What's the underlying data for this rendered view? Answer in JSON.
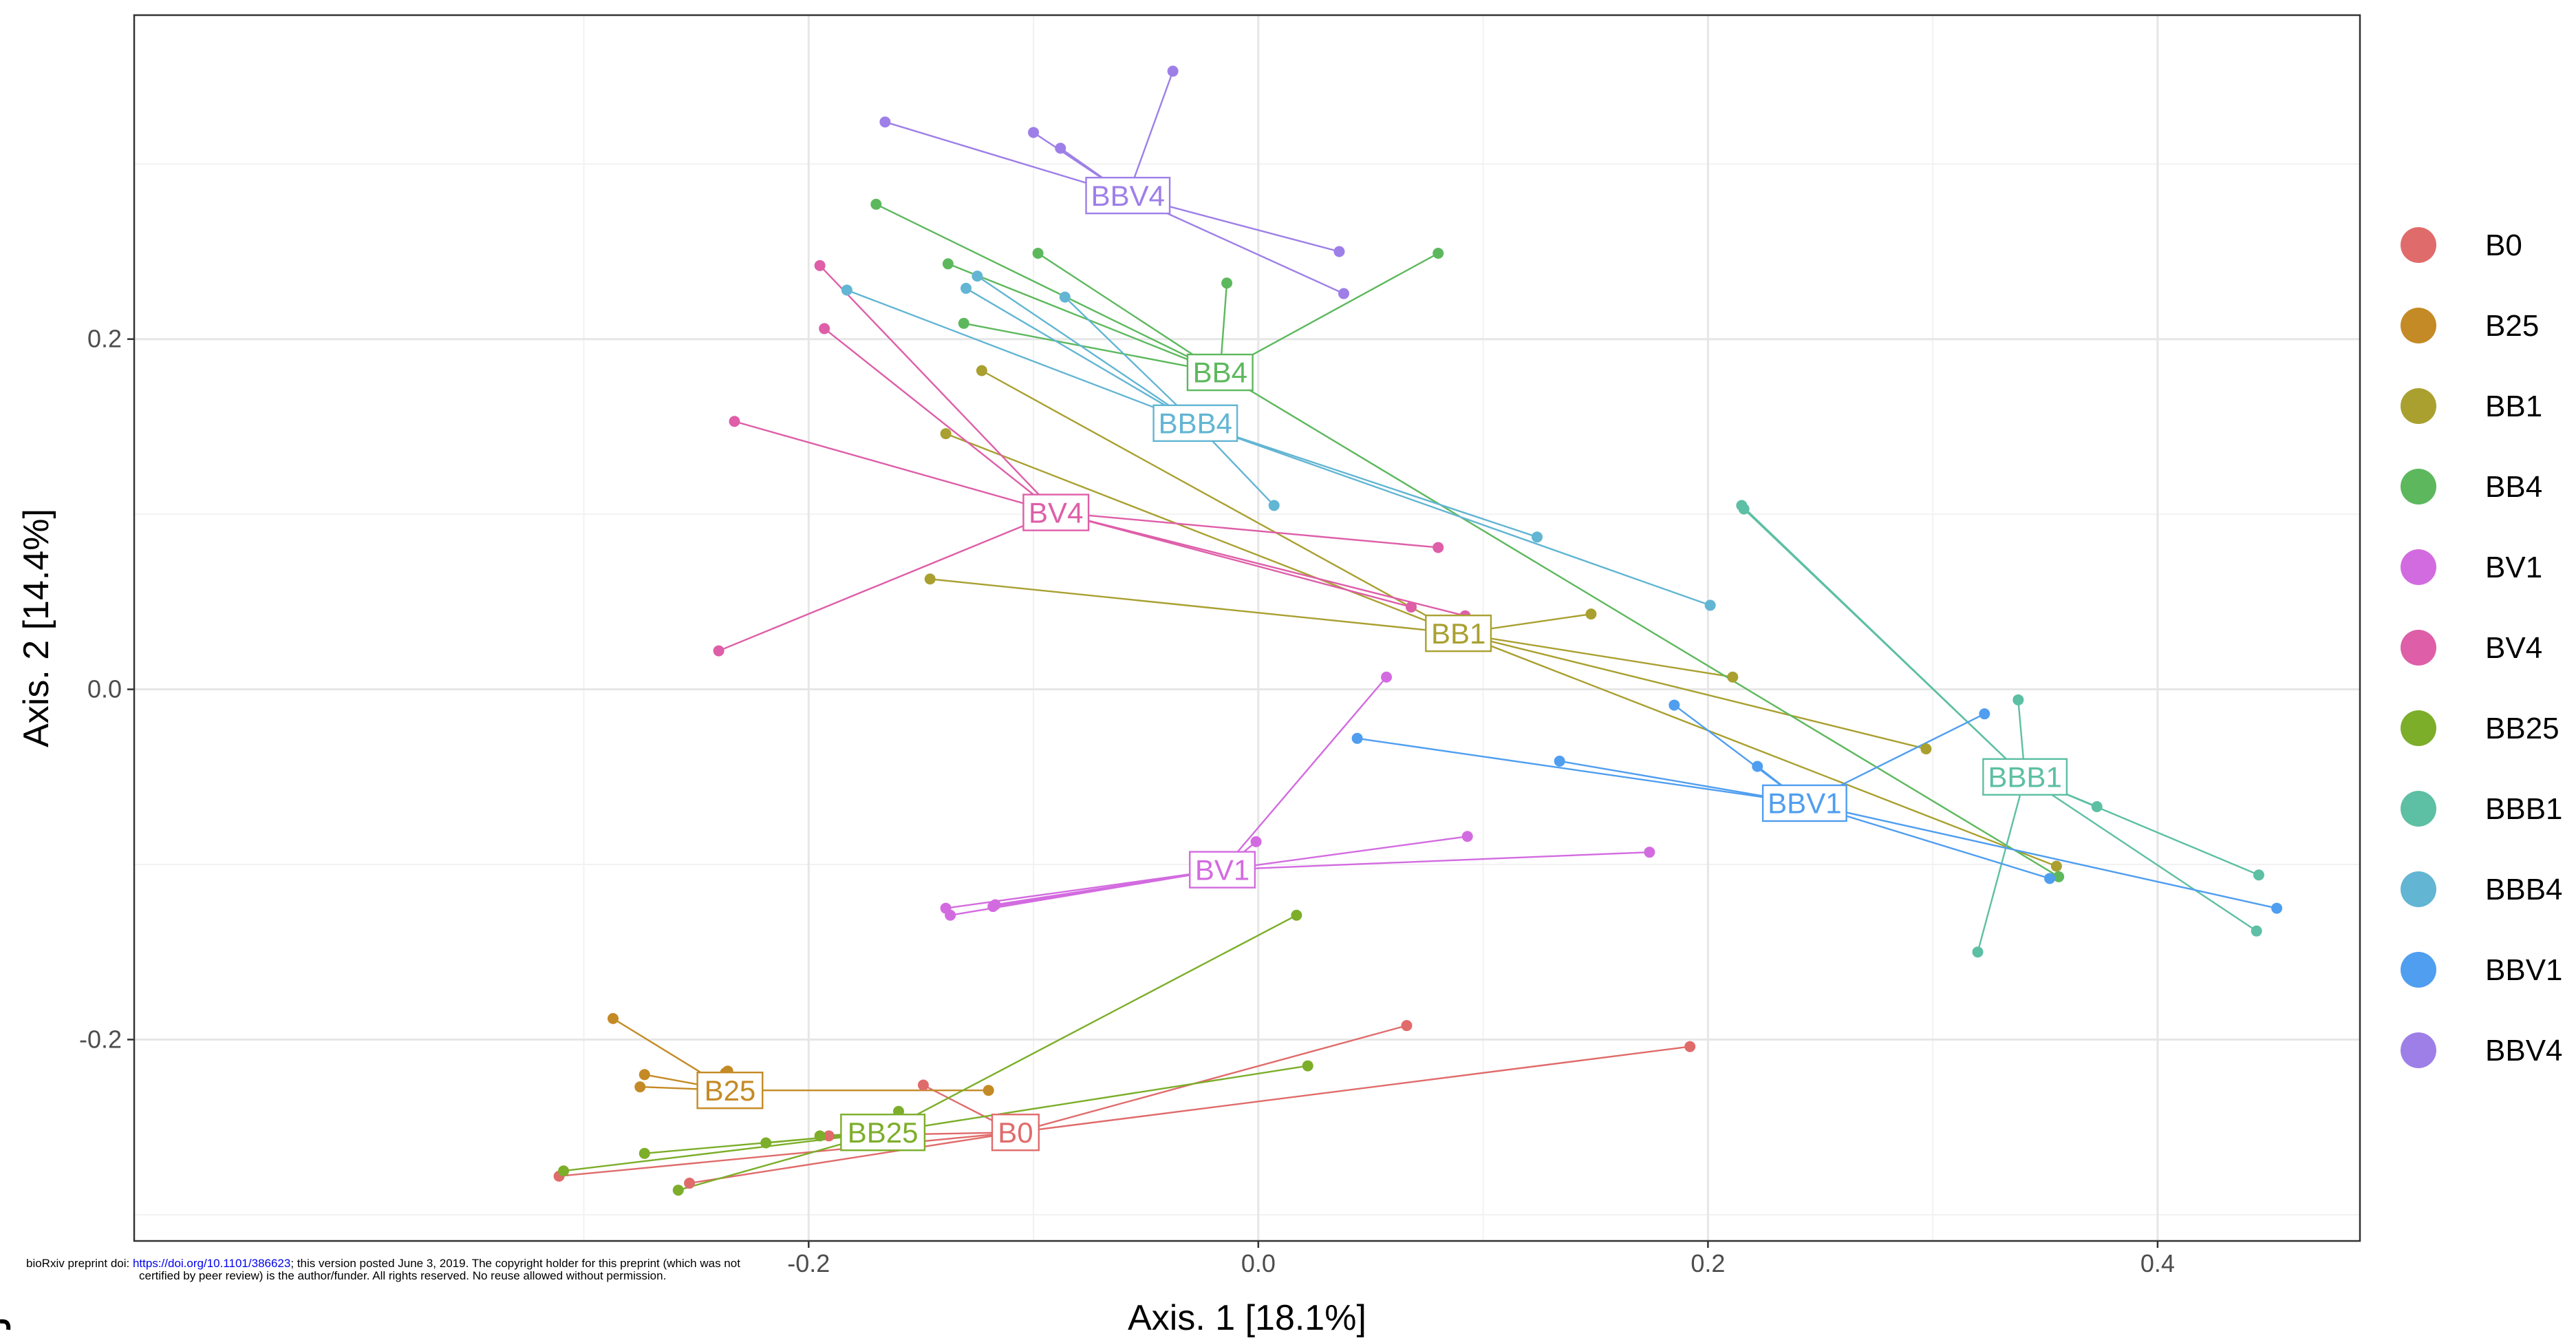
{
  "chart_data": {
    "type": "scatter",
    "subtype": "PCoA ordination with centroid spider lines",
    "xlabel": "Axis. 1 [18.1%]",
    "ylabel": "Axis. 2 [14.4%]",
    "xlim": [
      -0.5,
      0.49
    ],
    "ylim": [
      -0.315,
      0.385
    ],
    "xticks": [
      -0.2,
      0.0,
      0.2,
      0.4
    ],
    "xtick_labels": [
      "-0.2",
      "0.0",
      "0.2",
      "0.4"
    ],
    "yticks": [
      -0.2,
      0.0,
      0.2
    ],
    "ytick_labels": [
      "-0.2",
      "0.0",
      "0.2"
    ],
    "grid": true,
    "legend_position": "right",
    "series": [
      {
        "name": "B0",
        "color": "#E06B6B",
        "label": "B0",
        "centroid": [
          -0.108,
          -0.253
        ],
        "points": [
          [
            -0.311,
            -0.278
          ],
          [
            -0.253,
            -0.282
          ],
          [
            -0.191,
            -0.255
          ],
          [
            -0.149,
            -0.226
          ],
          [
            0.066,
            -0.192
          ],
          [
            0.192,
            -0.204
          ]
        ]
      },
      {
        "name": "B25",
        "color": "#C48A25",
        "label": "B25",
        "centroid": [
          -0.235,
          -0.229
        ],
        "points": [
          [
            -0.287,
            -0.188
          ],
          [
            -0.273,
            -0.22
          ],
          [
            -0.275,
            -0.227
          ],
          [
            -0.237,
            -0.219
          ],
          [
            -0.236,
            -0.218
          ],
          [
            -0.12,
            -0.229
          ]
        ]
      },
      {
        "name": "BB1",
        "color": "#A9A030",
        "label": "BB1",
        "centroid": [
          0.089,
          0.032
        ],
        "points": [
          [
            -0.123,
            0.182
          ],
          [
            -0.139,
            0.146
          ],
          [
            -0.146,
            0.063
          ],
          [
            0.148,
            0.043
          ],
          [
            0.211,
            0.007
          ],
          [
            0.297,
            -0.034
          ],
          [
            0.355,
            -0.101
          ]
        ]
      },
      {
        "name": "BB4",
        "color": "#5DB85D",
        "label": "BB4",
        "centroid": [
          -0.017,
          0.181
        ],
        "points": [
          [
            -0.17,
            0.277
          ],
          [
            -0.138,
            0.243
          ],
          [
            -0.131,
            0.209
          ],
          [
            -0.098,
            0.249
          ],
          [
            -0.014,
            0.232
          ],
          [
            0.08,
            0.249
          ],
          [
            0.356,
            -0.107
          ]
        ]
      },
      {
        "name": "BV1",
        "color": "#D36BE0",
        "label": "BV1",
        "centroid": [
          -0.016,
          -0.103
        ],
        "points": [
          [
            -0.001,
            -0.087
          ],
          [
            0.057,
            0.007
          ],
          [
            -0.139,
            -0.125
          ],
          [
            -0.137,
            -0.129
          ],
          [
            -0.118,
            -0.124
          ],
          [
            -0.117,
            -0.123
          ],
          [
            0.093,
            -0.084
          ],
          [
            0.174,
            -0.093
          ]
        ]
      },
      {
        "name": "BV4",
        "color": "#DE5EA8",
        "label": "BV4",
        "centroid": [
          -0.09,
          0.101
        ],
        "points": [
          [
            -0.195,
            0.242
          ],
          [
            -0.193,
            0.206
          ],
          [
            -0.233,
            0.153
          ],
          [
            -0.24,
            0.022
          ],
          [
            0.08,
            0.081
          ],
          [
            0.068,
            0.047
          ],
          [
            0.092,
            0.042
          ]
        ]
      },
      {
        "name": "BB25",
        "color": "#7CAE2A",
        "label": "BB25",
        "centroid": [
          -0.167,
          -0.253
        ],
        "points": [
          [
            -0.309,
            -0.275
          ],
          [
            -0.273,
            -0.265
          ],
          [
            -0.219,
            -0.259
          ],
          [
            -0.195,
            -0.255
          ],
          [
            -0.258,
            -0.286
          ],
          [
            -0.16,
            -0.241
          ],
          [
            0.017,
            -0.129
          ],
          [
            0.022,
            -0.215
          ]
        ]
      },
      {
        "name": "BBB1",
        "color": "#5DBFA3",
        "label": "BBB1",
        "centroid": [
          0.341,
          -0.05
        ],
        "points": [
          [
            0.215,
            0.105
          ],
          [
            0.216,
            0.103
          ],
          [
            0.338,
            -0.006
          ],
          [
            0.373,
            -0.067
          ],
          [
            0.445,
            -0.106
          ],
          [
            0.444,
            -0.138
          ],
          [
            0.32,
            -0.15
          ]
        ]
      },
      {
        "name": "BBB4",
        "color": "#62B5D3",
        "label": "BBB4",
        "centroid": [
          -0.028,
          0.152
        ],
        "points": [
          [
            -0.183,
            0.228
          ],
          [
            -0.13,
            0.229
          ],
          [
            -0.125,
            0.236
          ],
          [
            -0.086,
            0.224
          ],
          [
            0.007,
            0.105
          ],
          [
            0.124,
            0.087
          ],
          [
            0.201,
            0.048
          ]
        ]
      },
      {
        "name": "BBV1",
        "color": "#4F9EF0",
        "label": "BBV1",
        "centroid": [
          0.243,
          -0.065
        ],
        "points": [
          [
            0.185,
            -0.009
          ],
          [
            0.222,
            -0.044
          ],
          [
            0.134,
            -0.041
          ],
          [
            0.044,
            -0.028
          ],
          [
            0.323,
            -0.014
          ],
          [
            0.352,
            -0.108
          ],
          [
            0.453,
            -0.125
          ]
        ]
      },
      {
        "name": "BBV4",
        "color": "#9E7FE8",
        "label": "BBV4",
        "centroid": [
          -0.058,
          0.282
        ],
        "points": [
          [
            -0.166,
            0.324
          ],
          [
            -0.1,
            0.318
          ],
          [
            -0.088,
            0.309
          ],
          [
            -0.038,
            0.353
          ],
          [
            0.036,
            0.25
          ],
          [
            0.038,
            0.226
          ]
        ]
      }
    ]
  },
  "footer": {
    "preprint_line1_prefix": "bioRxiv preprint doi: ",
    "preprint_link": "https://doi.org/10.1101/386623",
    "preprint_line1_suffix": "; this version posted June 3, 2019. The copyright holder for this preprint (which was not",
    "preprint_line2": "certified by peer review) is the author/funder. All rights reserved. No reuse allowed without permission."
  }
}
